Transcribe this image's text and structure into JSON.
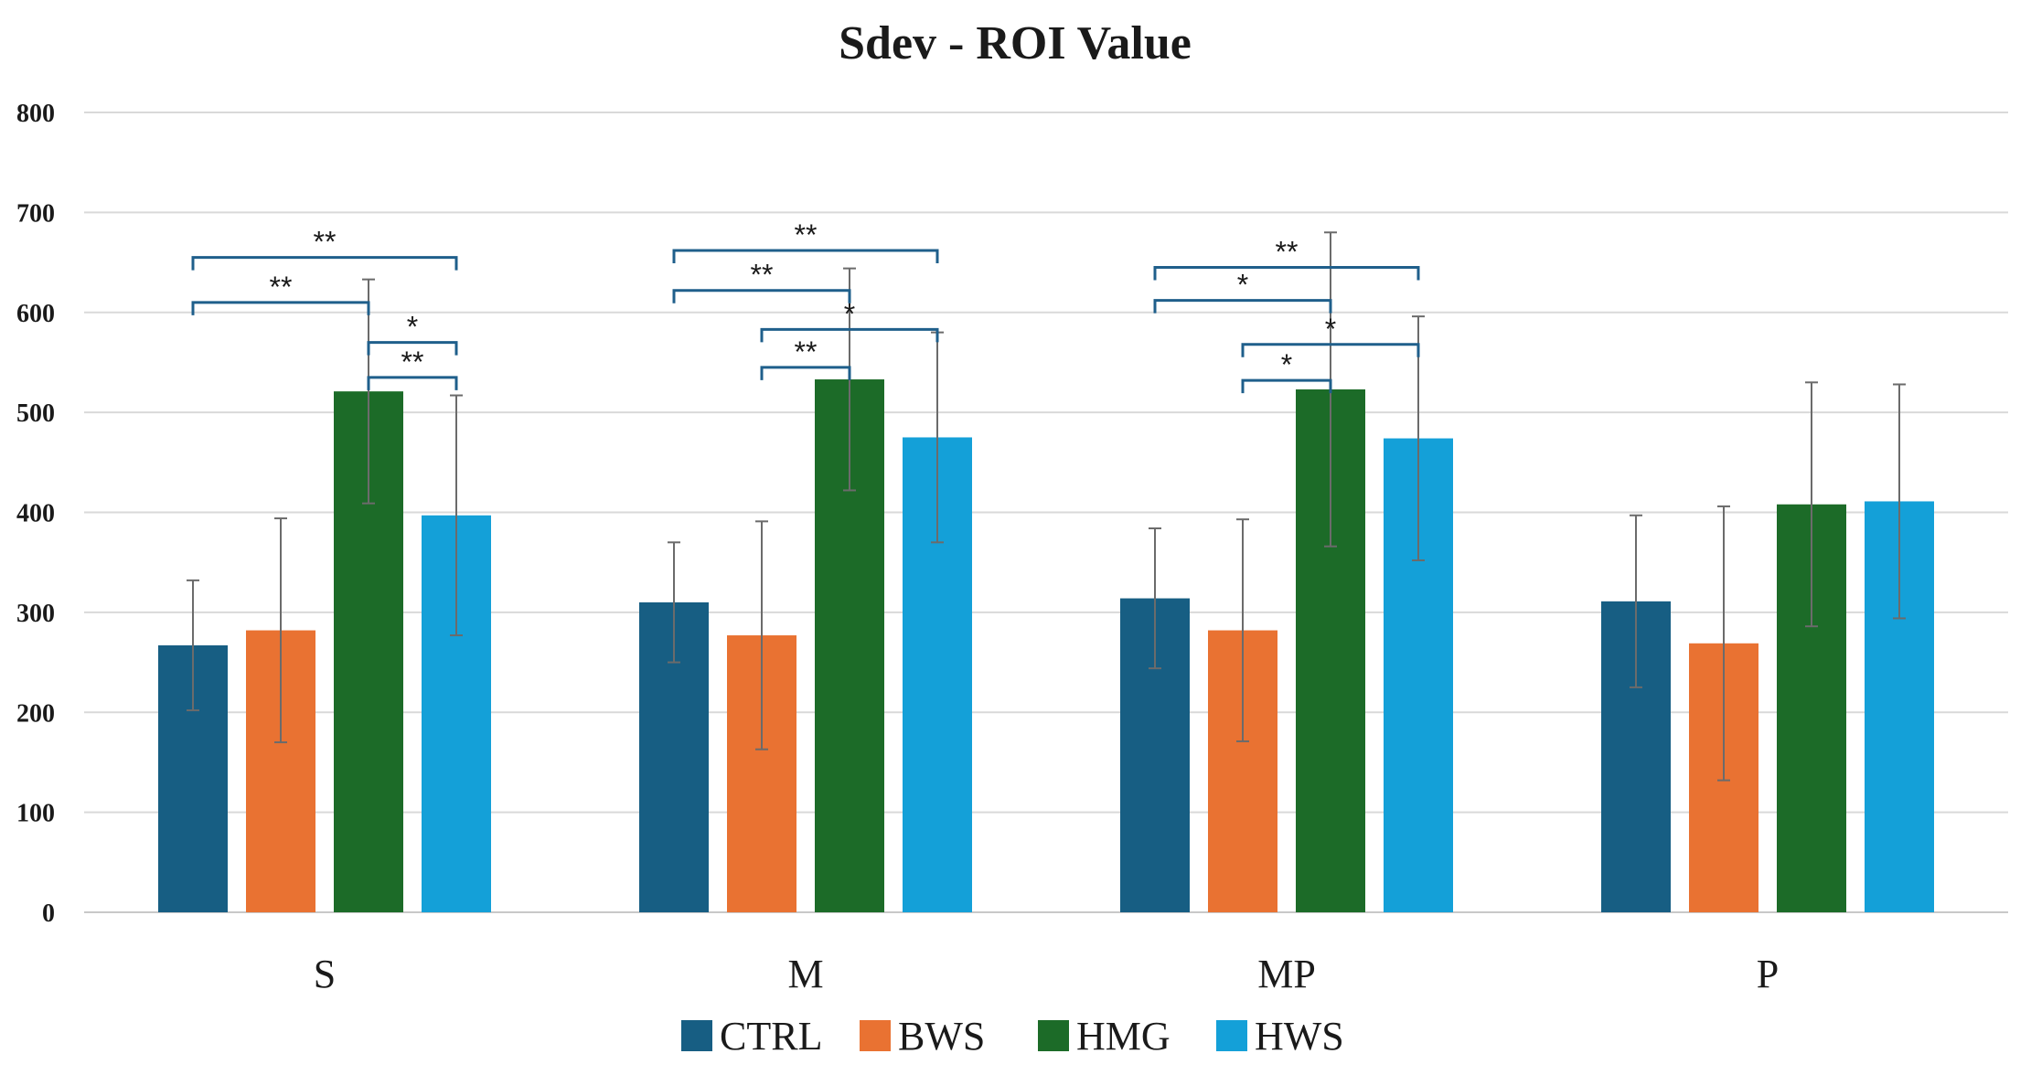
{
  "chart_data": {
    "type": "bar",
    "title": "Sdev - ROI Value",
    "xlabel": "",
    "ylabel": "",
    "ylim": [
      0,
      800
    ],
    "yticks": [
      0,
      100,
      200,
      300,
      400,
      500,
      600,
      700,
      800
    ],
    "grid": true,
    "legend_position": "bottom",
    "categories": [
      "S",
      "M",
      "MP",
      "P"
    ],
    "series": [
      {
        "name": "CTRL",
        "color": "#175e83",
        "values": [
          267,
          310,
          314,
          311
        ],
        "errors": [
          65,
          60,
          70,
          86
        ]
      },
      {
        "name": "BWS",
        "color": "#e97232",
        "values": [
          282,
          277,
          282,
          269
        ],
        "errors": [
          112,
          114,
          111,
          137
        ]
      },
      {
        "name": "HMG",
        "color": "#1c6b28",
        "values": [
          521,
          533,
          523,
          408
        ],
        "errors": [
          112,
          111,
          157,
          122
        ]
      },
      {
        "name": "HWS",
        "color": "#14a0d8",
        "values": [
          397,
          475,
          474,
          411
        ],
        "errors": [
          120,
          105,
          122,
          117
        ]
      }
    ],
    "annotations": [
      {
        "category": "S",
        "from": "HMG",
        "to": "HWS",
        "level": 535,
        "label": "**"
      },
      {
        "category": "S",
        "from": "HMG",
        "to": "HWS",
        "level": 570,
        "label": "*"
      },
      {
        "category": "S",
        "from": "CTRL",
        "to": "HMG",
        "level": 610,
        "label": "**"
      },
      {
        "category": "S",
        "from": "CTRL",
        "to": "HWS",
        "level": 655,
        "label": "**"
      },
      {
        "category": "M",
        "from": "BWS",
        "to": "HMG",
        "level": 545,
        "label": "**"
      },
      {
        "category": "M",
        "from": "BWS",
        "to": "HWS",
        "level": 583,
        "label": "*"
      },
      {
        "category": "M",
        "from": "CTRL",
        "to": "HMG",
        "level": 622,
        "label": "**"
      },
      {
        "category": "M",
        "from": "CTRL",
        "to": "HWS",
        "level": 662,
        "label": "**"
      },
      {
        "category": "MP",
        "from": "BWS",
        "to": "HMG",
        "level": 532,
        "label": "*"
      },
      {
        "category": "MP",
        "from": "BWS",
        "to": "HWS",
        "level": 568,
        "label": "*"
      },
      {
        "category": "MP",
        "from": "CTRL",
        "to": "HMG",
        "level": 612,
        "label": "*"
      },
      {
        "category": "MP",
        "from": "CTRL",
        "to": "HWS",
        "level": 645,
        "label": "**"
      }
    ]
  }
}
